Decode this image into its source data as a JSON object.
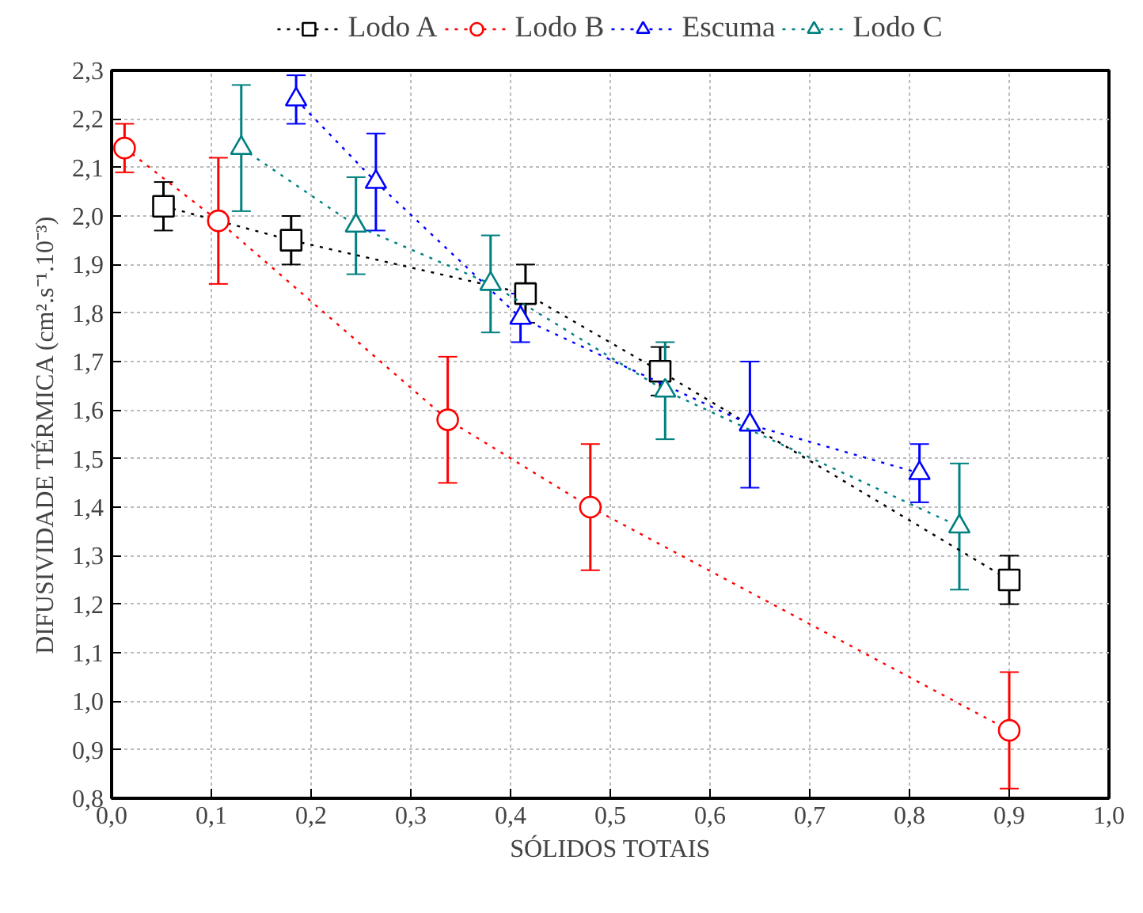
{
  "chart_data": {
    "type": "line",
    "xlabel": "SÓLIDOS TOTAIS",
    "ylabel": "DIFUSIVIDADE TÉRMICA (cm².s⁻¹.10⁻³)",
    "xlim": [
      0,
      1
    ],
    "ylim": [
      0.8,
      2.3
    ],
    "xticks": [
      {
        "value": 0,
        "label": "0,0"
      },
      {
        "value": 0.1,
        "label": "0,1"
      },
      {
        "value": 0.2,
        "label": "0,2"
      },
      {
        "value": 0.3,
        "label": "0,3"
      },
      {
        "value": 0.4,
        "label": "0,4"
      },
      {
        "value": 0.5,
        "label": "0,5"
      },
      {
        "value": 0.6,
        "label": "0,6"
      },
      {
        "value": 0.7,
        "label": "0,7"
      },
      {
        "value": 0.8,
        "label": "0,8"
      },
      {
        "value": 0.9,
        "label": "0,9"
      },
      {
        "value": 1,
        "label": "1,0"
      }
    ],
    "yticks": [
      {
        "value": 0.8,
        "label": "0,8"
      },
      {
        "value": 0.9,
        "label": "0,9"
      },
      {
        "value": 1,
        "label": "1,0"
      },
      {
        "value": 1.1,
        "label": "1,1"
      },
      {
        "value": 1.2,
        "label": "1,2"
      },
      {
        "value": 1.3,
        "label": "1,3"
      },
      {
        "value": 1.4,
        "label": "1,4"
      },
      {
        "value": 1.5,
        "label": "1,5"
      },
      {
        "value": 1.6,
        "label": "1,6"
      },
      {
        "value": 1.7,
        "label": "1,7"
      },
      {
        "value": 1.8,
        "label": "1,8"
      },
      {
        "value": 1.9,
        "label": "1,9"
      },
      {
        "value": 2,
        "label": "2,0"
      },
      {
        "value": 2.1,
        "label": "2,1"
      },
      {
        "value": 2.2,
        "label": "2,2"
      },
      {
        "value": 2.3,
        "label": "2,3"
      }
    ],
    "grid": true,
    "legend": "top",
    "line_style": "dotted",
    "series": [
      {
        "name": "Lodo A",
        "color": "#000000",
        "marker": "square",
        "x": [
          0.052,
          0.18,
          0.415,
          0.55,
          0.9
        ],
        "values": [
          2.02,
          1.95,
          1.84,
          1.68,
          1.25
        ],
        "errors": [
          0.05,
          0.05,
          0.06,
          0.05,
          0.05
        ]
      },
      {
        "name": "Lodo B",
        "color": "#ff0000",
        "marker": "circle",
        "x": [
          0.013,
          0.107,
          0.337,
          0.48,
          0.9
        ],
        "values": [
          2.14,
          1.99,
          1.58,
          1.4,
          0.94
        ],
        "errors": [
          0.05,
          0.13,
          0.13,
          0.13,
          [
            0.82,
            1.06
          ]
        ]
      },
      {
        "name": "Escuma",
        "color": "#0000ff",
        "marker": "triangle",
        "x": [
          0.185,
          0.265,
          0.41,
          0.64,
          0.81
        ],
        "values": [
          2.24,
          2.07,
          1.79,
          1.57,
          1.47
        ],
        "errors": [
          [
            2.19,
            2.29
          ],
          0.1,
          [
            1.74,
            1.84
          ],
          0.13,
          0.06
        ]
      },
      {
        "name": "Lodo C",
        "color": "#008080",
        "marker": "triangle",
        "x": [
          0.13,
          0.245,
          0.38,
          0.555,
          0.85
        ],
        "values": [
          2.14,
          1.98,
          1.86,
          1.64,
          1.36
        ],
        "errors": [
          0.13,
          0.1,
          0.1,
          0.1,
          0.13
        ]
      }
    ]
  }
}
